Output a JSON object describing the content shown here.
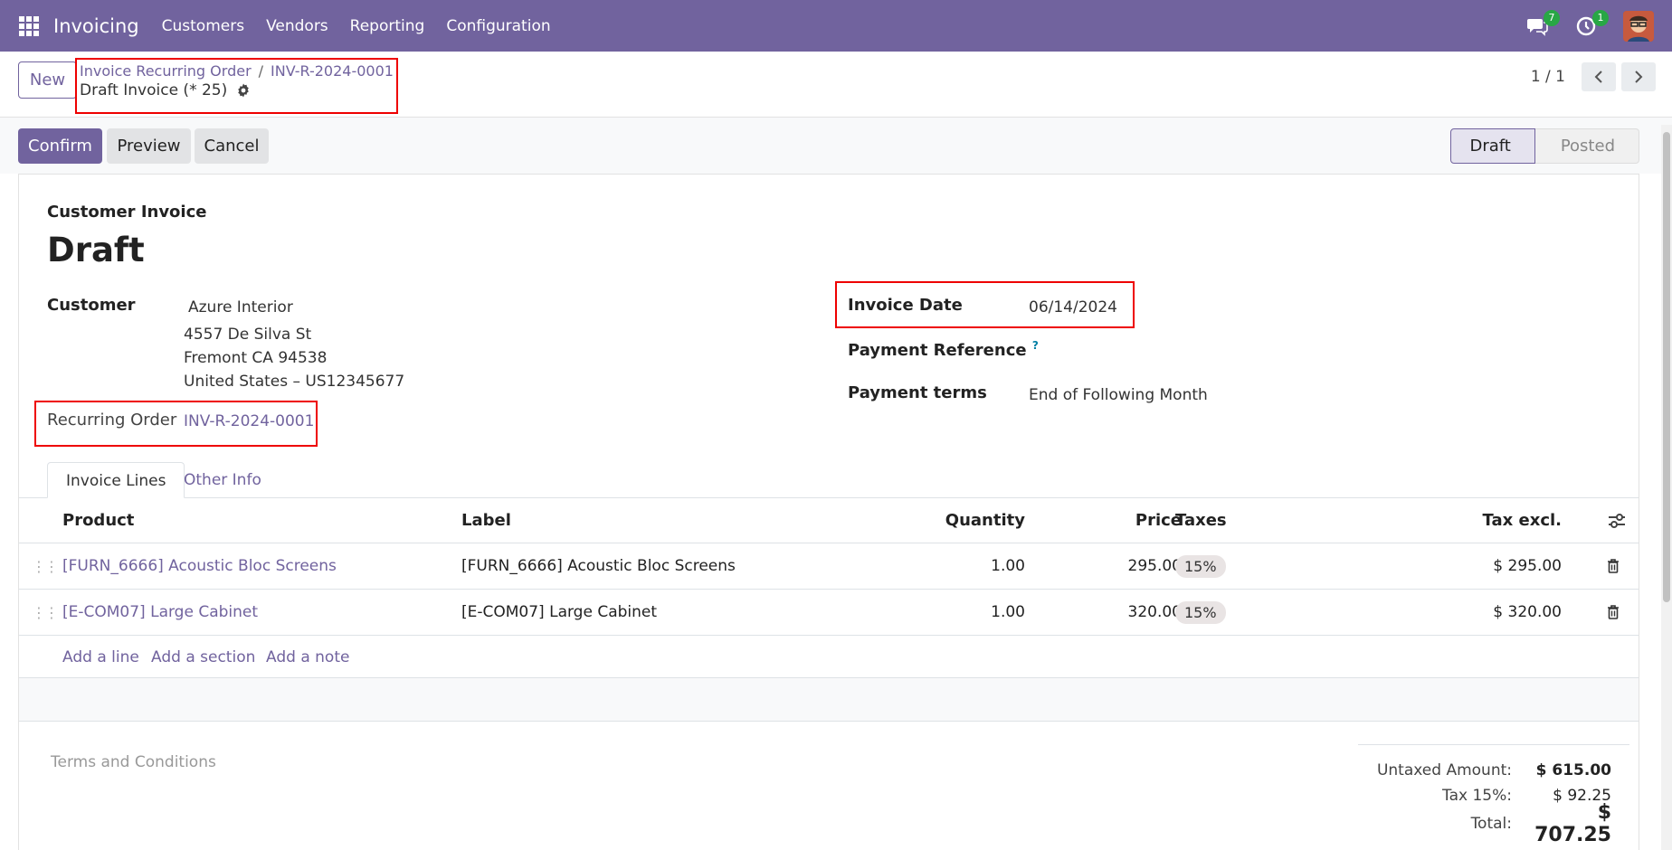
{
  "navbar": {
    "app_name": "Invoicing",
    "menu": [
      "Customers",
      "Vendors",
      "Reporting",
      "Configuration"
    ],
    "messages_count": "7",
    "activities_count": "1",
    "accent": "#71639e"
  },
  "control": {
    "new_label": "New",
    "breadcrumb": [
      "Invoice Recurring Order",
      "INV-R-2024-0001"
    ],
    "breadcrumb_sep": "/",
    "record_name": "Draft Invoice (* 25)",
    "pager": "1 / 1"
  },
  "actions": {
    "confirm": "Confirm",
    "preview": "Preview",
    "cancel": "Cancel",
    "status_draft": "Draft",
    "status_posted": "Posted"
  },
  "form": {
    "doc_type": "Customer Invoice",
    "title": "Draft",
    "customer_label": "Customer",
    "customer_name": "Azure Interior",
    "address_line1": "4557 De Silva St",
    "address_line2": "Fremont CA 94538",
    "address_line3": "United States – US12345677",
    "recurring_label": "Recurring Order",
    "recurring_value": "INV-R-2024-0001",
    "invoice_date_label": "Invoice Date",
    "invoice_date_value": "06/14/2024",
    "payment_ref_label": "Payment Reference",
    "payment_ref_help": "?",
    "payment_terms_label": "Payment terms",
    "payment_terms_value": "End of Following Month"
  },
  "tabs": {
    "lines": "Invoice Lines",
    "other": "Other Info"
  },
  "table": {
    "headers": {
      "product": "Product",
      "label": "Label",
      "quantity": "Quantity",
      "price": "Price",
      "taxes": "Taxes",
      "tax_excl": "Tax excl."
    },
    "rows": [
      {
        "product": "[FURN_6666] Acoustic Bloc Screens",
        "label": "[FURN_6666] Acoustic Bloc Screens",
        "quantity": "1.00",
        "price": "295.00",
        "tax": "15%",
        "subtotal": "$ 295.00"
      },
      {
        "product": "[E-COM07] Large Cabinet",
        "label": "[E-COM07] Large Cabinet",
        "quantity": "1.00",
        "price": "320.00",
        "tax": "15%",
        "subtotal": "$ 320.00"
      }
    ],
    "add_line": "Add a line",
    "add_section": "Add a section",
    "add_note": "Add a note"
  },
  "footer": {
    "terms_placeholder": "Terms and Conditions",
    "untaxed_label": "Untaxed Amount:",
    "untaxed_value": "$ 615.00",
    "tax_label": "Tax 15%:",
    "tax_value": "$ 92.25",
    "total_label": "Total:",
    "total_value": "$ 707.25"
  }
}
